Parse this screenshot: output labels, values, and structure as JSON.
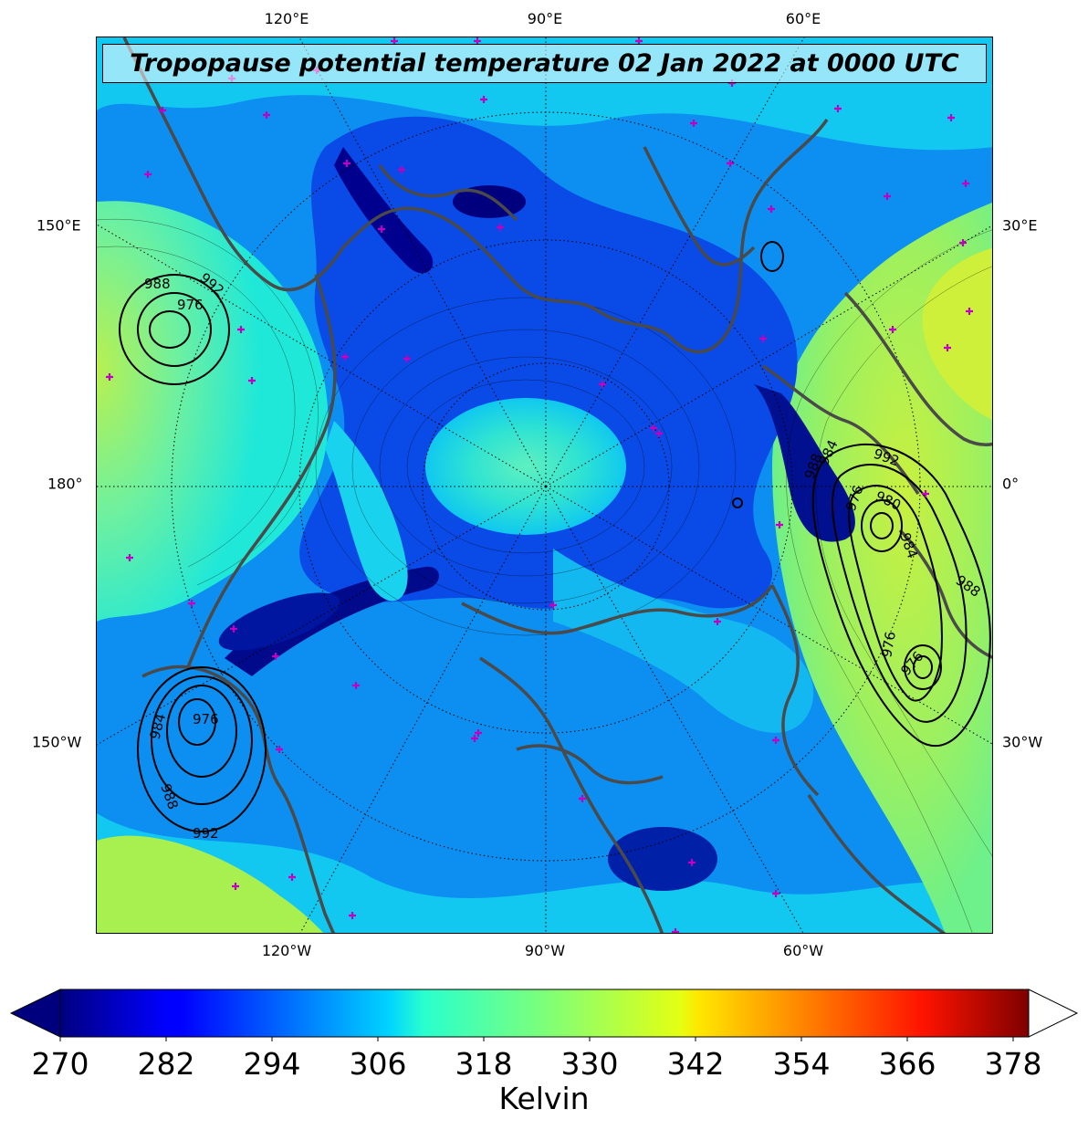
{
  "title": "Tropopause potential temperature 02 Jan 2022 at 0000 UTC",
  "longitude_labels": {
    "top": [
      "120°E",
      "90°E",
      "60°E"
    ],
    "bottom": [
      "120°W",
      "90°W",
      "60°W"
    ],
    "left": [
      "150°E",
      "180°",
      "150°W"
    ],
    "right": [
      "30°E",
      "0°",
      "30°W"
    ]
  },
  "colorbar": {
    "ticks": [
      "270",
      "282",
      "294",
      "306",
      "318",
      "330",
      "342",
      "354",
      "366",
      "378"
    ],
    "label": "Kelvin",
    "colormap": "jet",
    "extend": "both",
    "colors": [
      "#00007f",
      "#0000ff",
      "#007fff",
      "#00ffff",
      "#7fff7f",
      "#ffff00",
      "#ff7f00",
      "#ff0000",
      "#7f0000"
    ]
  },
  "pressure_contour_labels": {
    "nw": [
      "988",
      "992",
      "976"
    ],
    "sw": [
      "976",
      "984",
      "988",
      "992"
    ],
    "e": [
      "992",
      "988",
      "984",
      "980",
      "976",
      "984",
      "988",
      "976",
      "976"
    ]
  },
  "map": {
    "projection": "north polar stereographic",
    "field_colors": {
      "deep": "#00008f",
      "blue": "#0a3ce0",
      "mid": "#0c8ff0",
      "cyan": "#10d6f2",
      "teal": "#30f0c8",
      "lime": "#a8f050",
      "yellow": "#d8f030"
    },
    "coast_color": "#4a4a4a",
    "marker_color": "#c000c0"
  }
}
